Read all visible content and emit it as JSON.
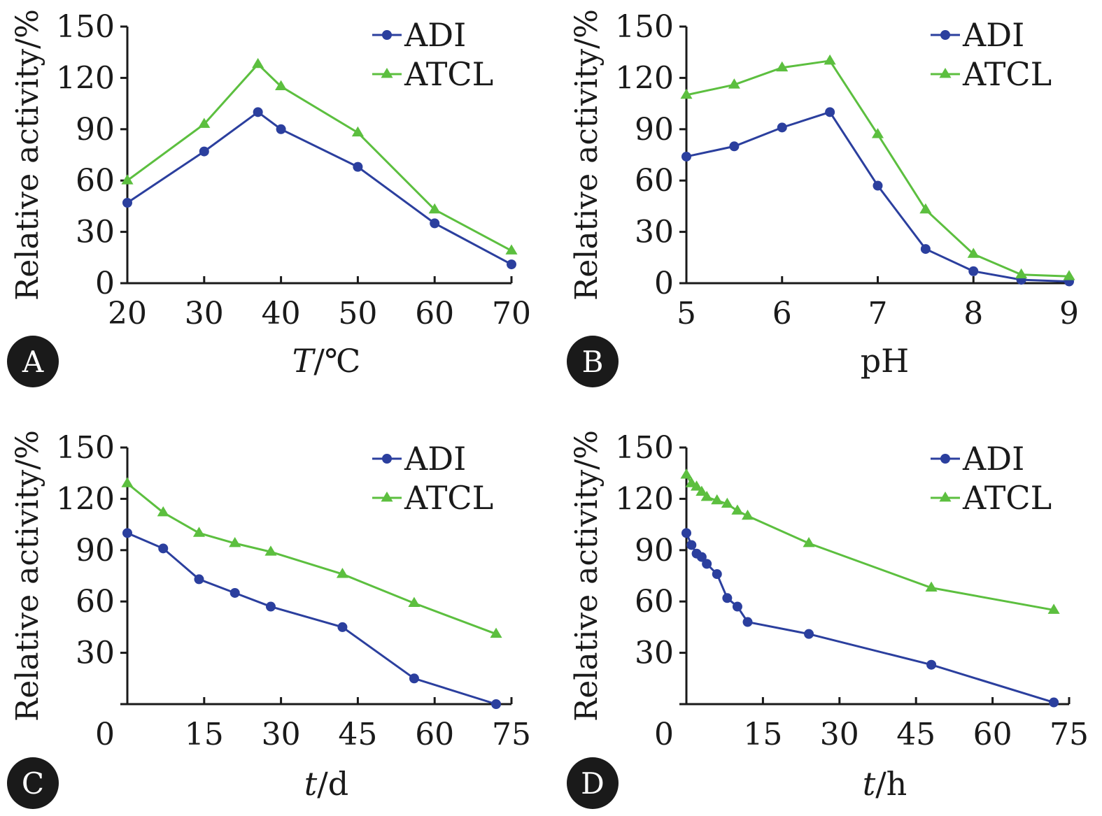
{
  "colors": {
    "adi": "#2b3f9e",
    "atcl": "#5cbf3f",
    "axis": "#1a1a1a",
    "badge": "#1a1a1a"
  },
  "chart_data": [
    {
      "type": "line",
      "panel": "A",
      "xlabel": "T/℃",
      "xlabel_italic": "T",
      "xlabel_rest": "/℃",
      "ylabel": "Relative activity/%",
      "xlim": [
        20,
        70
      ],
      "ylim": [
        0,
        150
      ],
      "xticks": [
        20,
        30,
        40,
        50,
        60,
        70
      ],
      "yticks": [
        0,
        30,
        60,
        90,
        120,
        150
      ],
      "legend": "top-right",
      "series": [
        {
          "name": "ADI",
          "marker": "circle",
          "x": [
            20,
            30,
            37,
            40,
            50,
            60,
            70
          ],
          "y": [
            47,
            77,
            100,
            90,
            68,
            35,
            11
          ]
        },
        {
          "name": "ATCL",
          "marker": "triangle",
          "x": [
            20,
            30,
            37,
            40,
            50,
            60,
            70
          ],
          "y": [
            60,
            93,
            128,
            115,
            88,
            43,
            19
          ]
        }
      ]
    },
    {
      "type": "line",
      "panel": "B",
      "xlabel": "pH",
      "xlabel_italic": "",
      "xlabel_rest": "pH",
      "ylabel": "Relative activity/%",
      "xlim": [
        5,
        9
      ],
      "ylim": [
        0,
        150
      ],
      "xticks": [
        5,
        6,
        7,
        8,
        9
      ],
      "yticks": [
        0,
        30,
        60,
        90,
        120,
        150
      ],
      "legend": "top-right",
      "series": [
        {
          "name": "ADI",
          "marker": "circle",
          "x": [
            5,
            5.5,
            6,
            6.5,
            7,
            7.5,
            8,
            8.5,
            9
          ],
          "y": [
            74,
            80,
            91,
            100,
            57,
            20,
            7,
            2,
            1
          ]
        },
        {
          "name": "ATCL",
          "marker": "triangle",
          "x": [
            5,
            5.5,
            6,
            6.5,
            7,
            7.5,
            8,
            8.5,
            9
          ],
          "y": [
            110,
            116,
            126,
            130,
            87,
            43,
            17,
            5,
            4
          ]
        }
      ]
    },
    {
      "type": "line",
      "panel": "C",
      "xlabel": "t/d",
      "xlabel_italic": "t",
      "xlabel_rest": "/d",
      "ylabel": "Relative activity/%",
      "xlim": [
        0,
        75
      ],
      "ylim": [
        0,
        150
      ],
      "xticks": [
        0,
        15,
        30,
        45,
        60,
        75
      ],
      "yticks": [
        30,
        60,
        90,
        120,
        150
      ],
      "legend": "top-right",
      "series": [
        {
          "name": "ADI",
          "marker": "circle",
          "x": [
            0,
            7,
            14,
            21,
            28,
            42,
            56,
            72
          ],
          "y": [
            100,
            91,
            73,
            65,
            57,
            45,
            15,
            0
          ]
        },
        {
          "name": "ATCL",
          "marker": "triangle",
          "x": [
            0,
            7,
            14,
            21,
            28,
            42,
            56,
            72
          ],
          "y": [
            129,
            112,
            100,
            94,
            89,
            76,
            59,
            41
          ]
        }
      ]
    },
    {
      "type": "line",
      "panel": "D",
      "xlabel": "t/h",
      "xlabel_italic": "t",
      "xlabel_rest": "/h",
      "ylabel": "Relative activity/%",
      "xlim": [
        0,
        75
      ],
      "ylim": [
        0,
        150
      ],
      "xticks": [
        0,
        15,
        30,
        45,
        60,
        75
      ],
      "yticks": [
        30,
        60,
        90,
        120,
        150
      ],
      "legend": "top-right",
      "series": [
        {
          "name": "ADI",
          "marker": "circle",
          "x": [
            0,
            1,
            2,
            3,
            4,
            6,
            8,
            10,
            12,
            24,
            48,
            72
          ],
          "y": [
            100,
            93,
            88,
            86,
            82,
            76,
            62,
            57,
            48,
            41,
            23,
            1
          ]
        },
        {
          "name": "ATCL",
          "marker": "triangle",
          "x": [
            0,
            1,
            2,
            3,
            4,
            6,
            8,
            10,
            12,
            24,
            48,
            72
          ],
          "y": [
            134,
            129,
            127,
            124,
            121,
            119,
            117,
            113,
            110,
            94,
            68,
            55
          ]
        }
      ]
    }
  ]
}
